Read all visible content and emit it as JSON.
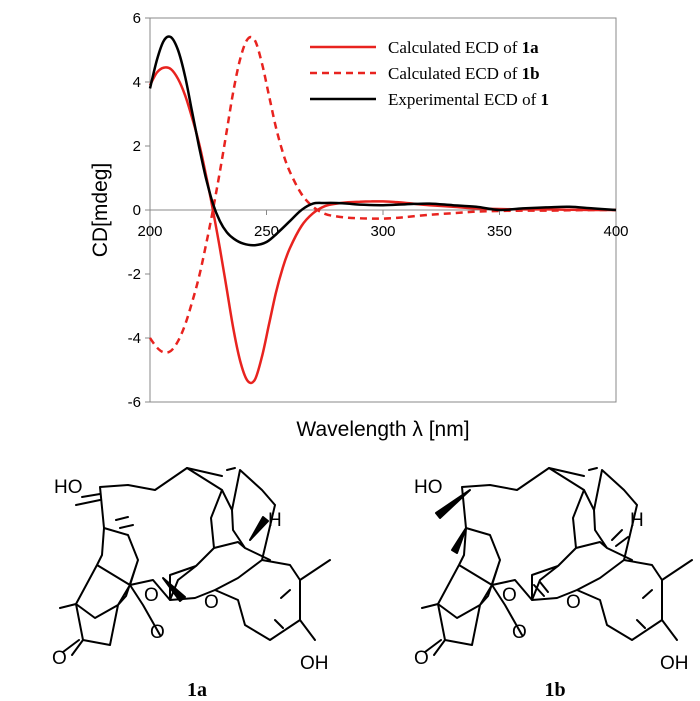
{
  "chart_data": {
    "type": "line",
    "title": "",
    "xlabel": "Wavelength λ [nm]",
    "ylabel": "CD[mdeg]",
    "xlim": [
      200,
      400
    ],
    "ylim": [
      -6,
      6
    ],
    "x_ticks": [
      "200",
      "250",
      "300",
      "350",
      "400"
    ],
    "y_ticks": [
      "6",
      "4",
      "2",
      "0",
      "-2",
      "-4",
      "-6"
    ],
    "grid": false,
    "legend": "top-right",
    "series": [
      {
        "name": "Calculated ECD of 1a",
        "name_parts": [
          "Calculated ECD of ",
          "1a"
        ],
        "color": "#e8231f",
        "style": "solid",
        "x": [
          200,
          203,
          206,
          209,
          212,
          215,
          218,
          221,
          224,
          227,
          230,
          233,
          236,
          239,
          242,
          245,
          248,
          251,
          254,
          257,
          260,
          265,
          270,
          275,
          280,
          285,
          290,
          295,
          300,
          305,
          310,
          320,
          330,
          340,
          350,
          360,
          370,
          380,
          390,
          400
        ],
        "y": [
          3.9,
          4.3,
          4.45,
          4.4,
          4.1,
          3.6,
          2.9,
          2.1,
          1.1,
          0.0,
          -1.2,
          -2.5,
          -3.8,
          -4.8,
          -5.35,
          -5.3,
          -4.6,
          -3.6,
          -2.6,
          -1.8,
          -1.2,
          -0.5,
          -0.1,
          0.12,
          0.2,
          0.24,
          0.26,
          0.27,
          0.27,
          0.25,
          0.22,
          0.15,
          0.1,
          0.05,
          0.03,
          0.02,
          0.02,
          0.01,
          0.0,
          0.0
        ]
      },
      {
        "name": "Calculated ECD of 1b",
        "name_parts": [
          "Calculated ECD of ",
          "1b"
        ],
        "color": "#e8231f",
        "style": "dashed",
        "x": [
          200,
          203,
          206,
          209,
          212,
          215,
          218,
          221,
          224,
          227,
          230,
          233,
          236,
          239,
          242,
          245,
          248,
          251,
          254,
          257,
          260,
          265,
          270,
          275,
          280,
          285,
          290,
          295,
          300,
          305,
          310,
          320,
          330,
          340,
          350,
          360,
          370,
          380,
          390,
          400
        ],
        "y": [
          -4.0,
          -4.3,
          -4.45,
          -4.4,
          -4.1,
          -3.6,
          -2.9,
          -2.1,
          -1.1,
          0.0,
          1.2,
          2.5,
          3.8,
          4.8,
          5.35,
          5.3,
          4.6,
          3.6,
          2.6,
          1.8,
          1.2,
          0.5,
          0.1,
          -0.12,
          -0.2,
          -0.24,
          -0.26,
          -0.27,
          -0.27,
          -0.25,
          -0.22,
          -0.15,
          -0.1,
          -0.05,
          -0.03,
          -0.02,
          -0.02,
          -0.01,
          0.0,
          0.0
        ]
      },
      {
        "name": "Experimental ECD of 1",
        "name_parts": [
          "Experimental ECD of ",
          "1"
        ],
        "color": "#000000",
        "style": "solid",
        "x": [
          200,
          203,
          206,
          209,
          212,
          215,
          218,
          221,
          224,
          227,
          230,
          233,
          236,
          240,
          245,
          250,
          255,
          260,
          265,
          270,
          275,
          280,
          285,
          290,
          300,
          310,
          320,
          330,
          340,
          350,
          360,
          370,
          380,
          390,
          400
        ],
        "y": [
          3.8,
          4.7,
          5.3,
          5.4,
          5.0,
          4.2,
          3.1,
          2.0,
          1.0,
          0.2,
          -0.35,
          -0.7,
          -0.9,
          -1.05,
          -1.1,
          -1.0,
          -0.7,
          -0.35,
          0.0,
          0.2,
          0.22,
          0.22,
          0.2,
          0.17,
          0.15,
          0.18,
          0.2,
          0.15,
          0.1,
          0.0,
          0.05,
          0.08,
          0.1,
          0.05,
          0.0
        ]
      }
    ]
  },
  "structures": {
    "labels": [
      "1a",
      "1b"
    ],
    "atom_labels": {
      "ho": "HO",
      "h": "H",
      "o": "O",
      "oh": "OH"
    }
  }
}
